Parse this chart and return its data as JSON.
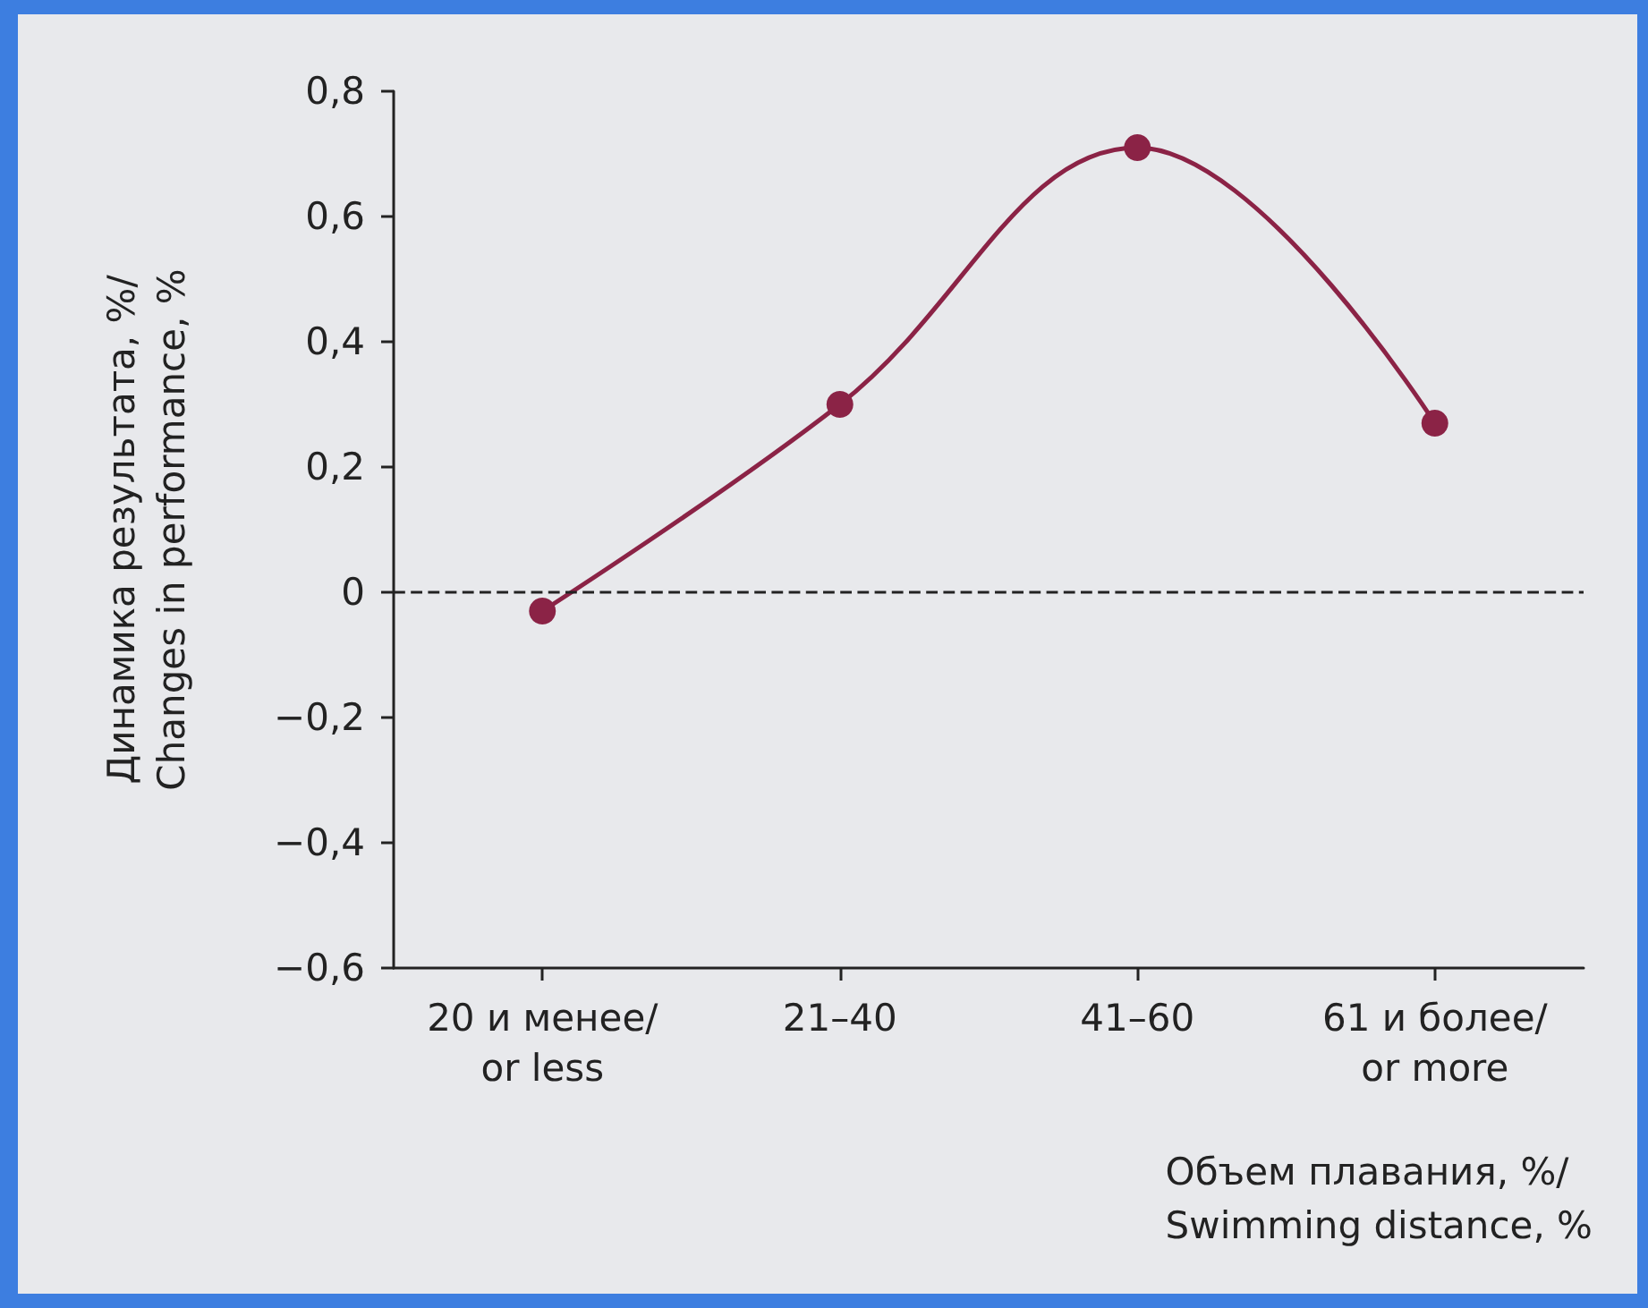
{
  "chart_data": {
    "type": "line",
    "xlabel": "Объем плавания, %/\nSwimming distance, %",
    "ylabel": "Динамика результата, %/\nChanges in performance, %",
    "categories": [
      "20 и менее/\nor less",
      "21–40",
      "41–60",
      "61 и более/\nor more"
    ],
    "series": [
      {
        "color": "#8b2346",
        "values": [
          -0.03,
          0.3,
          0.71,
          0.27
        ]
      }
    ],
    "ylim": [
      -0.6,
      0.8
    ],
    "yticks": [
      {
        "value": -0.6,
        "label": "−0,6"
      },
      {
        "value": -0.4,
        "label": "−0,4"
      },
      {
        "value": -0.2,
        "label": "−0,2"
      },
      0,
      {
        "value": 0.2,
        "label": "0,2"
      },
      {
        "value": 0.4,
        "label": "0,4"
      },
      {
        "value": 0.6,
        "label": "0,6"
      },
      {
        "value": 0.8,
        "label": "0,8"
      }
    ],
    "ref_lines": [
      {
        "axis": "y",
        "value": 0,
        "color": "#222222",
        "line_style": "dashed"
      }
    ],
    "marker": "circle",
    "line_style": "solid",
    "grid": false
  }
}
